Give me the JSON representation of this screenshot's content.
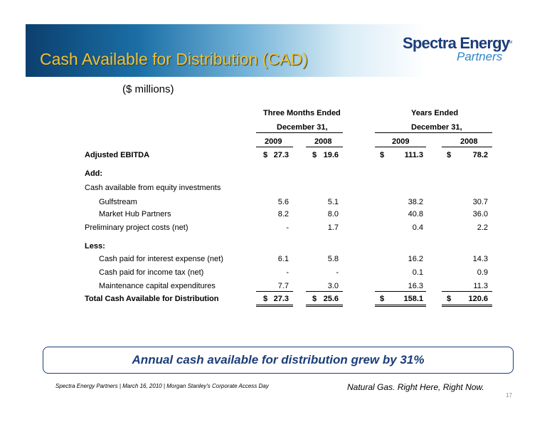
{
  "slide": {
    "title": "Cash Available for Distribution (CAD)",
    "units": "($ millions)",
    "page_number": "17"
  },
  "logo": {
    "main": "Spectra Energy",
    "sub": "Partners",
    "tm": "TM"
  },
  "table": {
    "group_headers": {
      "three_months": "Three Months Ended",
      "years": "Years Ended",
      "date": "December 31,"
    },
    "columns": [
      "2009",
      "2008",
      "2009",
      "2008"
    ],
    "rows": [
      {
        "label": "Adjusted EBITDA",
        "values": [
          "27.3",
          "19.6",
          "111.3",
          "78.2"
        ],
        "dollar": true,
        "bold": true,
        "indent": false
      },
      {
        "label": "Add:",
        "values": [
          "",
          "",
          "",
          ""
        ],
        "bold": true,
        "indent": false
      },
      {
        "label": "Cash available from equity investments",
        "values": [
          "",
          "",
          "",
          ""
        ],
        "indent": false
      },
      {
        "label": "Gulfstream",
        "values": [
          "5.6",
          "5.1",
          "38.2",
          "30.7"
        ],
        "indent": true
      },
      {
        "label": "Market Hub Partners",
        "values": [
          "8.2",
          "8.0",
          "40.8",
          "36.0"
        ],
        "indent": true
      },
      {
        "label": "Preliminary project costs (net)",
        "values": [
          "-",
          "1.7",
          "0.4",
          "2.2"
        ],
        "indent": false
      },
      {
        "label": "Less:",
        "values": [
          "",
          "",
          "",
          ""
        ],
        "bold": true,
        "indent": false
      },
      {
        "label": "Cash paid for interest expense (net)",
        "values": [
          "6.1",
          "5.8",
          "16.2",
          "14.3"
        ],
        "indent": true
      },
      {
        "label": "Cash paid for income tax (net)",
        "values": [
          "-",
          "-",
          "0.1",
          "0.9"
        ],
        "indent": true
      },
      {
        "label": "Maintenance capital expenditures",
        "values": [
          "7.7",
          "3.0",
          "16.3",
          "11.3"
        ],
        "indent": true
      },
      {
        "label": "Total Cash Available for Distribution",
        "values": [
          "27.3",
          "25.6",
          "158.1",
          "120.6"
        ],
        "dollar": true,
        "bold": true,
        "indent": false
      }
    ],
    "dollar_sign": "$"
  },
  "callout": "Annual cash available for distribution grew by 31%",
  "footer": {
    "left": "Spectra Energy Partners | March 16, 2010 | Morgan Stanley's Corporate Access Day",
    "right": "Natural Gas.  Right Here, Right Now."
  }
}
